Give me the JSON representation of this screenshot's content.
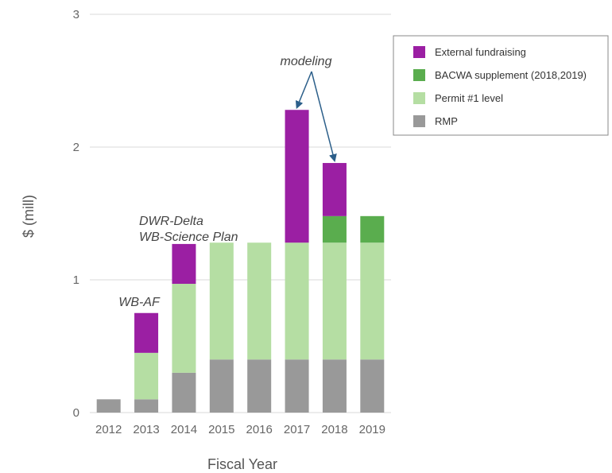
{
  "chart_data": {
    "type": "bar",
    "stacked": true,
    "title": "",
    "xlabel": "Fiscal Year",
    "ylabel": "$ (mill)",
    "ylim": [
      0,
      3
    ],
    "yticks": [
      "0",
      "1",
      "2",
      "3"
    ],
    "grid": true,
    "legend_position": "top-right",
    "categories": [
      "2012",
      "2013",
      "2014",
      "2015",
      "2016",
      "2017",
      "2018",
      "2019"
    ],
    "series": [
      {
        "name": "RMP",
        "color": "#999999",
        "values": [
          0.1,
          0.1,
          0.3,
          0.4,
          0.4,
          0.4,
          0.4,
          0.4
        ]
      },
      {
        "name": "Permit #1 level",
        "color": "#b5dea3",
        "values": [
          0,
          0.35,
          0.67,
          0.88,
          0.88,
          0.88,
          0.88,
          0.88
        ]
      },
      {
        "name": "BACWA supplement (2018,2019)",
        "color": "#5aad4e",
        "values": [
          0,
          0,
          0,
          0,
          0,
          0,
          0.2,
          0.2
        ]
      },
      {
        "name": "External fundraising",
        "color": "#9b1fa3",
        "values": [
          0,
          0.3,
          0.3,
          0,
          0,
          1.0,
          0.4,
          0
        ]
      }
    ],
    "legend_order": [
      "External fundraising",
      "BACWA supplement (2018,2019)",
      "Permit #1 level",
      "RMP"
    ],
    "annotations": [
      {
        "name": "annotation-wb-af",
        "lines": [
          "WB-AF"
        ],
        "category": "2013"
      },
      {
        "name": "annotation-dwr-delta",
        "lines": [
          "DWR-Delta",
          "WB-Science Plan"
        ],
        "category": "2014"
      },
      {
        "name": "annotation-modeling",
        "lines": [
          "modeling"
        ],
        "arrow_targets": [
          "2017",
          "2018"
        ]
      }
    ]
  }
}
